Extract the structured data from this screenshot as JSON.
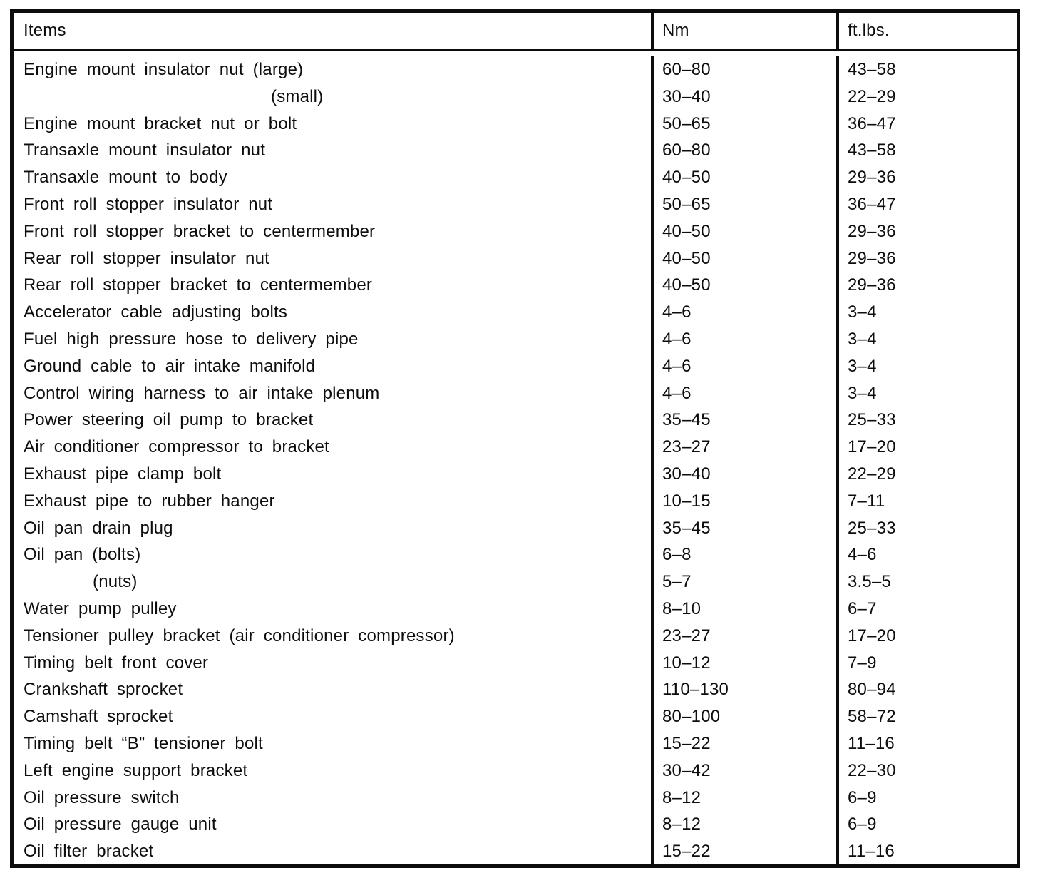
{
  "table": {
    "headers": {
      "item": "Items",
      "nm": "Nm",
      "ftlbs": "ft.lbs."
    },
    "rows": [
      {
        "item": "Engine mount insulator nut (large)",
        "nm": "60–80",
        "ftlbs": "43–58",
        "indent": 0
      },
      {
        "item": "(small)",
        "nm": "30–40",
        "ftlbs": "22–29",
        "indent": 2
      },
      {
        "item": "Engine mount bracket nut or bolt",
        "nm": "50–65",
        "ftlbs": "36–47",
        "indent": 0
      },
      {
        "item": "Transaxle mount insulator nut",
        "nm": "60–80",
        "ftlbs": "43–58",
        "indent": 0
      },
      {
        "item": "Transaxle mount to body",
        "nm": "40–50",
        "ftlbs": "29–36",
        "indent": 0
      },
      {
        "item": "Front roll stopper insulator nut",
        "nm": "50–65",
        "ftlbs": "36–47",
        "indent": 0
      },
      {
        "item": "Front roll stopper bracket to centermember",
        "nm": "40–50",
        "ftlbs": "29–36",
        "indent": 0
      },
      {
        "item": "Rear roll stopper insulator nut",
        "nm": "40–50",
        "ftlbs": "29–36",
        "indent": 0
      },
      {
        "item": "Rear roll stopper bracket to centermember",
        "nm": "40–50",
        "ftlbs": "29–36",
        "indent": 0
      },
      {
        "item": "Accelerator cable adjusting bolts",
        "nm": "4–6",
        "ftlbs": "3–4",
        "indent": 0
      },
      {
        "item": "Fuel high pressure hose to delivery pipe",
        "nm": "4–6",
        "ftlbs": "3–4",
        "indent": 0
      },
      {
        "item": "Ground cable to air intake manifold",
        "nm": "4–6",
        "ftlbs": "3–4",
        "indent": 0
      },
      {
        "item": "Control wiring harness to air intake plenum",
        "nm": "4–6",
        "ftlbs": "3–4",
        "indent": 0
      },
      {
        "item": "Power steering oil pump to bracket",
        "nm": "35–45",
        "ftlbs": "25–33",
        "indent": 0
      },
      {
        "item": "Air conditioner compressor to bracket",
        "nm": "23–27",
        "ftlbs": "17–20",
        "indent": 0
      },
      {
        "item": "Exhaust pipe clamp bolt",
        "nm": "30–40",
        "ftlbs": "22–29",
        "indent": 0
      },
      {
        "item": "Exhaust pipe to rubber hanger",
        "nm": "10–15",
        "ftlbs": "7–11",
        "indent": 0
      },
      {
        "item": "Oil pan drain plug",
        "nm": "35–45",
        "ftlbs": "25–33",
        "indent": 0
      },
      {
        "item": "Oil pan (bolts)",
        "nm": "6–8",
        "ftlbs": "4–6",
        "indent": 0
      },
      {
        "item": "(nuts)",
        "nm": "5–7",
        "ftlbs": "3.5–5",
        "indent": 1
      },
      {
        "item": "Water pump pulley",
        "nm": "8–10",
        "ftlbs": "6–7",
        "indent": 0
      },
      {
        "item": "Tensioner pulley bracket (air conditioner compressor)",
        "nm": "23–27",
        "ftlbs": "17–20",
        "indent": 0
      },
      {
        "item": "Timing belt front cover",
        "nm": "10–12",
        "ftlbs": "7–9",
        "indent": 0
      },
      {
        "item": "Crankshaft sprocket",
        "nm": "110–130",
        "ftlbs": "80–94",
        "indent": 0
      },
      {
        "item": "Camshaft sprocket",
        "nm": "80–100",
        "ftlbs": "58–72",
        "indent": 0
      },
      {
        "item": "Timing belt “B” tensioner bolt",
        "nm": "15–22",
        "ftlbs": "11–16",
        "indent": 0
      },
      {
        "item": "Left engine support bracket",
        "nm": "30–42",
        "ftlbs": "22–30",
        "indent": 0
      },
      {
        "item": "Oil pressure switch",
        "nm": "8–12",
        "ftlbs": "6–9",
        "indent": 0
      },
      {
        "item": "Oil pressure gauge unit",
        "nm": "8–12",
        "ftlbs": "6–9",
        "indent": 0
      },
      {
        "item": "Oil filter bracket",
        "nm": "15–22",
        "ftlbs": "11–16",
        "indent": 0
      }
    ]
  }
}
